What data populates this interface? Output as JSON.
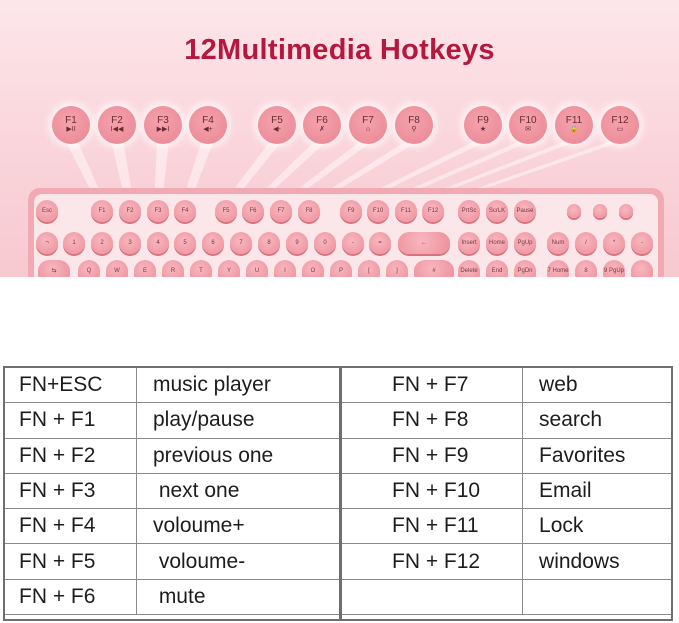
{
  "title": "12Multimedia Hotkeys",
  "colors": {
    "title": "#b5173f",
    "key_pink": "#ec8e9a",
    "background_pink": "#f9d3d9"
  },
  "hotkeys": [
    {
      "label": "F1",
      "icon": "play-pause-icon",
      "glyph": "▶II"
    },
    {
      "label": "F2",
      "icon": "previous-track-icon",
      "glyph": "I◀◀"
    },
    {
      "label": "F3",
      "icon": "next-track-icon",
      "glyph": "▶▶I"
    },
    {
      "label": "F4",
      "icon": "volume-up-icon",
      "glyph": "◀+"
    },
    {
      "label": "F5",
      "icon": "volume-down-icon",
      "glyph": "◀-"
    },
    {
      "label": "F6",
      "icon": "mute-icon",
      "glyph": "✗"
    },
    {
      "label": "F7",
      "icon": "home-icon",
      "glyph": "⌂"
    },
    {
      "label": "F8",
      "icon": "search-icon",
      "glyph": "⚲"
    },
    {
      "label": "F9",
      "icon": "star-icon",
      "glyph": "★"
    },
    {
      "label": "F10",
      "icon": "mail-icon",
      "glyph": "✉"
    },
    {
      "label": "F11",
      "icon": "lock-icon",
      "glyph": "🔒"
    },
    {
      "label": "F12",
      "icon": "computer-icon",
      "glyph": "▭"
    }
  ],
  "keyboard": {
    "row1": [
      "Esc",
      "F1",
      "F2",
      "F3",
      "F4",
      "F5",
      "F6",
      "F7",
      "F8",
      "F9",
      "F10",
      "F11",
      "F12",
      "PrtSc",
      "ScrLK",
      "Pause"
    ],
    "row2": [
      "¬",
      "1",
      "2",
      "3",
      "4",
      "5",
      "6",
      "7",
      "8",
      "9",
      "0",
      "-",
      "=",
      "←",
      "Insert",
      "Home",
      "PgUp",
      "Num Lock",
      "/",
      "*",
      "-"
    ],
    "row3": [
      "⇆",
      "Q",
      "W",
      "E",
      "R",
      "T",
      "Y",
      "U",
      "I",
      "O",
      "P",
      "[",
      "]",
      "#",
      "Delete",
      "End",
      "PgDn",
      "7 Home",
      "8",
      "9 PgUp",
      ""
    ]
  },
  "table": {
    "left": [
      [
        "FN+ESC",
        "music player"
      ],
      [
        "FN + F1",
        "play/pause"
      ],
      [
        "FN + F2",
        "previous one"
      ],
      [
        "FN + F3",
        " next one"
      ],
      [
        "FN + F4",
        "voloume+"
      ],
      [
        "FN + F5",
        " voloume-"
      ],
      [
        "FN + F6",
        " mute"
      ]
    ],
    "right": [
      [
        "FN + F7",
        "web"
      ],
      [
        "FN + F8",
        "search"
      ],
      [
        "FN + F9",
        "Favorites"
      ],
      [
        "FN + F10",
        "Email"
      ],
      [
        "FN + F11",
        "Lock"
      ],
      [
        "FN + F12",
        "windows"
      ],
      [
        "",
        ""
      ]
    ]
  }
}
